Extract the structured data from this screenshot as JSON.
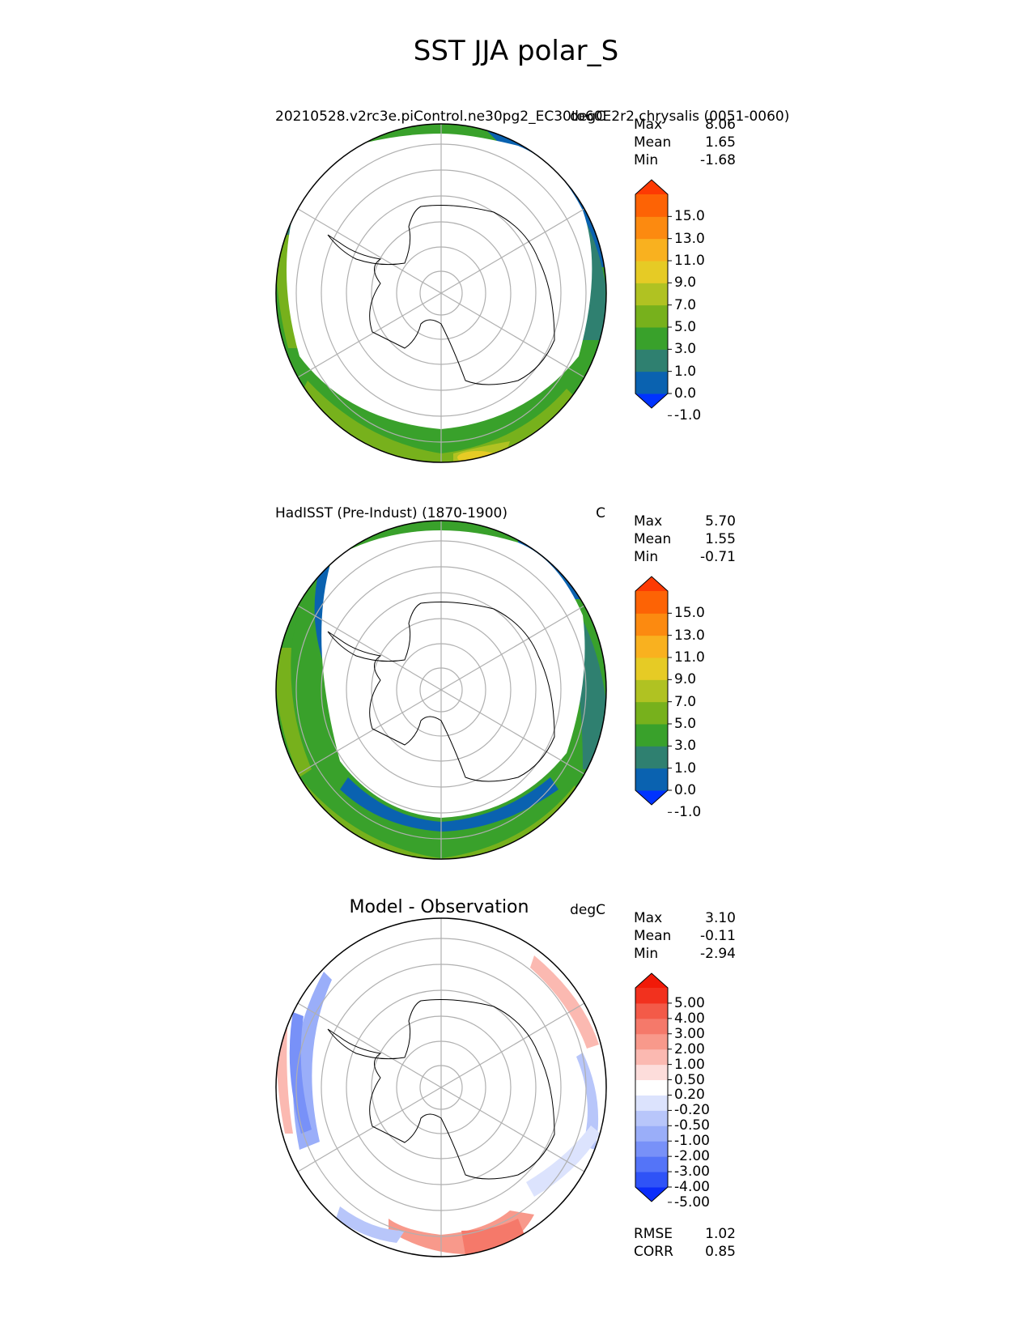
{
  "figure": {
    "title": "SST JJA polar_S"
  },
  "panels": [
    {
      "left_title": "20210528.v2rc3e.piControl.ne30pg2_EC30to60E2r2.chrysalis (0051-0060)",
      "right_title": "degC",
      "stats": {
        "max_label": "Max",
        "max": "8.06",
        "mean_label": "Mean",
        "mean": "1.65",
        "min_label": "Min",
        "min": "-1.68"
      },
      "colorbar": {
        "ticks": [
          "15.0",
          "13.0",
          "11.0",
          "9.0",
          "7.0",
          "5.0",
          "3.0",
          "1.0",
          "0.0",
          "-1.0"
        ],
        "colors": [
          "#0033ff",
          "#0a62b0",
          "#2f8070",
          "#39a12b",
          "#77b11c",
          "#b0c222",
          "#e6cb25",
          "#f9b11f",
          "#fc8a10",
          "#fd6305",
          "#fd3a03"
        ]
      }
    },
    {
      "left_title": "HadISST (Pre-Indust) (1870-1900)",
      "right_title": "C",
      "stats": {
        "max_label": "Max",
        "max": "5.70",
        "mean_label": "Mean",
        "mean": "1.55",
        "min_label": "Min",
        "min": "-0.71"
      },
      "colorbar": {
        "ticks": [
          "15.0",
          "13.0",
          "11.0",
          "9.0",
          "7.0",
          "5.0",
          "3.0",
          "1.0",
          "0.0",
          "-1.0"
        ],
        "colors": [
          "#0033ff",
          "#0a62b0",
          "#2f8070",
          "#39a12b",
          "#77b11c",
          "#b0c222",
          "#e6cb25",
          "#f9b11f",
          "#fc8a10",
          "#fd6305",
          "#fd3a03"
        ]
      }
    },
    {
      "center_title": "Model - Observation",
      "right_title": "degC",
      "stats": {
        "max_label": "Max",
        "max": "3.10",
        "mean_label": "Mean",
        "mean": "-0.11",
        "min_label": "Min",
        "min": "-2.94"
      },
      "colorbar": {
        "ticks": [
          "5.00",
          "4.00",
          "3.00",
          "2.00",
          "1.00",
          "0.50",
          "0.20",
          "-0.20",
          "-0.50",
          "-1.00",
          "-2.00",
          "-3.00",
          "-4.00",
          "-5.00"
        ],
        "colors": [
          "#0b2dfa",
          "#2f53f7",
          "#5474f8",
          "#7891f8",
          "#9aaef9",
          "#b8c6fa",
          "#dce3fd",
          "#ffffff",
          "#fddddb",
          "#fbb9b1",
          "#f8998b",
          "#f5796a",
          "#f35a48",
          "#f2311e",
          "#f11a08"
        ]
      },
      "metrics": {
        "rmse_label": "RMSE",
        "rmse": "1.02",
        "corr_label": "CORR",
        "corr": "0.85"
      }
    }
  ],
  "color_key": {
    "sea_ice": "#ffffff",
    "coastline": "#000000",
    "gridlines": "#b0b0b0"
  }
}
